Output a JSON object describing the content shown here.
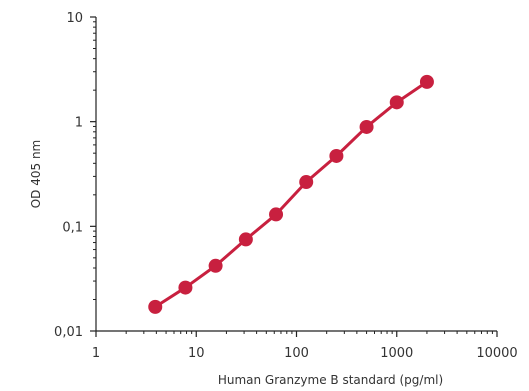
{
  "chart_data": {
    "type": "line",
    "title": "",
    "xlabel": "Human Granzyme B standard (pg/ml)",
    "ylabel": "OD 405 nm",
    "xscale": "log",
    "yscale": "log",
    "xlim": [
      1,
      10000
    ],
    "ylim": [
      0.01,
      10
    ],
    "x_ticks": [
      1,
      10,
      100,
      1000,
      10000
    ],
    "x_tick_labels": [
      "1",
      "10",
      "100",
      "1000",
      "10000"
    ],
    "y_ticks": [
      0.01,
      0.1,
      1,
      10
    ],
    "y_tick_labels": [
      "0,01",
      "0,1",
      "1",
      "10"
    ],
    "grid": false,
    "legend": "none",
    "series": [
      {
        "color": "#c8203f",
        "marker": "circle",
        "x": [
          3.9,
          7.8,
          15.6,
          31.25,
          62.5,
          125,
          250,
          500,
          1000,
          2000
        ],
        "y": [
          0.017,
          0.026,
          0.042,
          0.075,
          0.13,
          0.265,
          0.47,
          0.89,
          1.53,
          2.4
        ]
      }
    ]
  }
}
